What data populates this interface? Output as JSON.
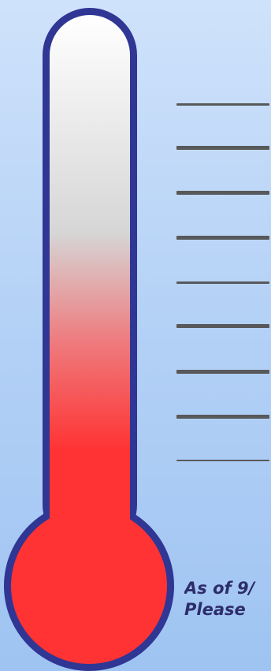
{
  "thermometer": {
    "fill_color": "#ff3333",
    "tube_top_color": "#ffffff",
    "tube_mid_color": "#d6d6d6",
    "outline_color": "#2f3694",
    "fill_level": 0.55
  },
  "scale": {
    "tick_count": 9,
    "tick_color": "#58595b"
  },
  "caption": {
    "line1": "As of 9/",
    "line2": "Please"
  }
}
